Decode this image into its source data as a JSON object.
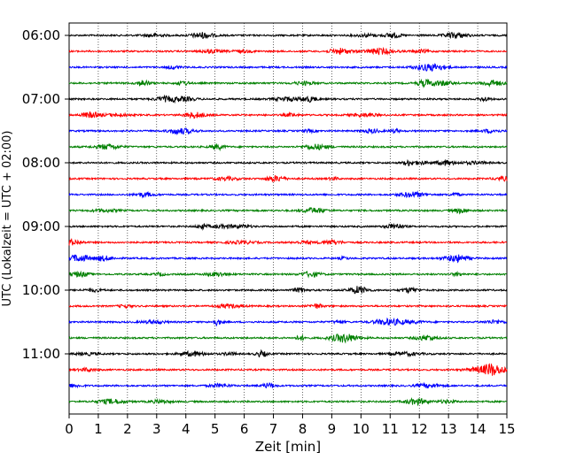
{
  "chart_data": {
    "type": "line",
    "title": "",
    "xlabel": "Zeit  [min]",
    "ylabel": "UTC (Lokalzeit = UTC + 02:00)",
    "xlim": [
      0,
      15
    ],
    "x_ticks": [
      0,
      1,
      2,
      3,
      4,
      5,
      6,
      7,
      8,
      9,
      10,
      11,
      12,
      13,
      14,
      15
    ],
    "x_tick_labels": [
      "0",
      "1",
      "2",
      "3",
      "4",
      "5",
      "6",
      "7",
      "8",
      "9",
      "10",
      "11",
      "12",
      "13",
      "14",
      "15"
    ],
    "y_tick_labels": [
      "06:00",
      "07:00",
      "08:00",
      "09:00",
      "10:00",
      "11:00"
    ],
    "trace_minutes": 15,
    "trace_start_times": [
      "06:00",
      "06:15",
      "06:30",
      "06:45",
      "07:00",
      "07:15",
      "07:30",
      "07:45",
      "08:00",
      "08:15",
      "08:30",
      "08:45",
      "09:00",
      "09:15",
      "09:30",
      "09:45",
      "10:00",
      "10:15",
      "10:30",
      "10:45",
      "11:00",
      "11:15",
      "11:30",
      "11:45"
    ],
    "trace_colors": [
      "#000000",
      "#ff0000",
      "#0000ff",
      "#008000"
    ],
    "vertical_grid": true,
    "grid_style": "dotted"
  }
}
